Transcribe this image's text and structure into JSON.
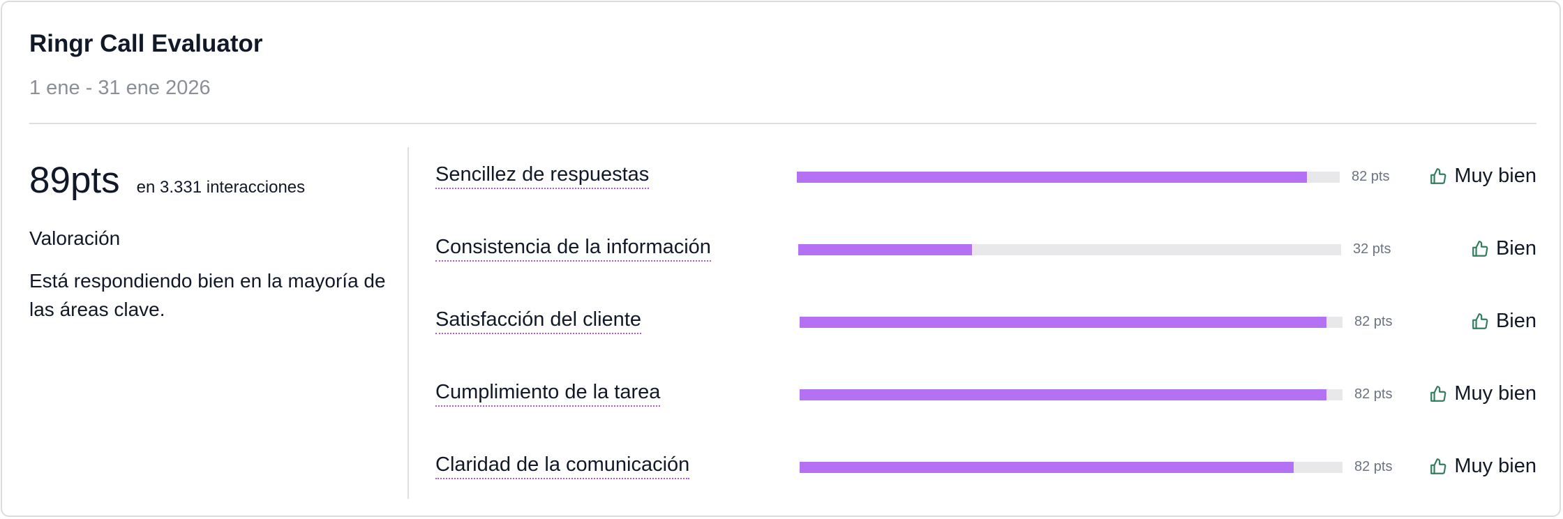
{
  "header": {
    "title": "Ringr Call Evaluator",
    "date_range": "1 ene - 31 ene 2026"
  },
  "summary": {
    "score": "89pts",
    "interactions": "en 3.331 interacciones",
    "rating_label": "Valoración",
    "rating_description": "Está respondiendo bien en la mayoría de las áreas clave."
  },
  "colors": {
    "bar_fill": "#b471f3",
    "bar_track": "#e8e8ea",
    "icon_green": "#2f7d5b",
    "underline": "#a855f7"
  },
  "metrics": [
    {
      "label": "Sencillez de respuestas",
      "progress": 0.94,
      "points": "82 pts",
      "status": "Muy bien",
      "icon": "thumbs-up-icon"
    },
    {
      "label": "Consistencia de la información",
      "progress": 0.32,
      "points": "32 pts",
      "status": "Bien",
      "icon": "thumbs-up-icon"
    },
    {
      "label": "Satisfacción del cliente",
      "progress": 0.97,
      "points": "82 pts",
      "status": "Bien",
      "icon": "thumbs-up-icon"
    },
    {
      "label": "Cumplimiento de la tarea",
      "progress": 0.97,
      "points": "82 pts",
      "status": "Muy bien",
      "icon": "thumbs-up-icon"
    },
    {
      "label": "Claridad de la comunicación",
      "progress": 0.91,
      "points": "82 pts",
      "status": "Muy bien",
      "icon": "thumbs-up-icon"
    }
  ]
}
